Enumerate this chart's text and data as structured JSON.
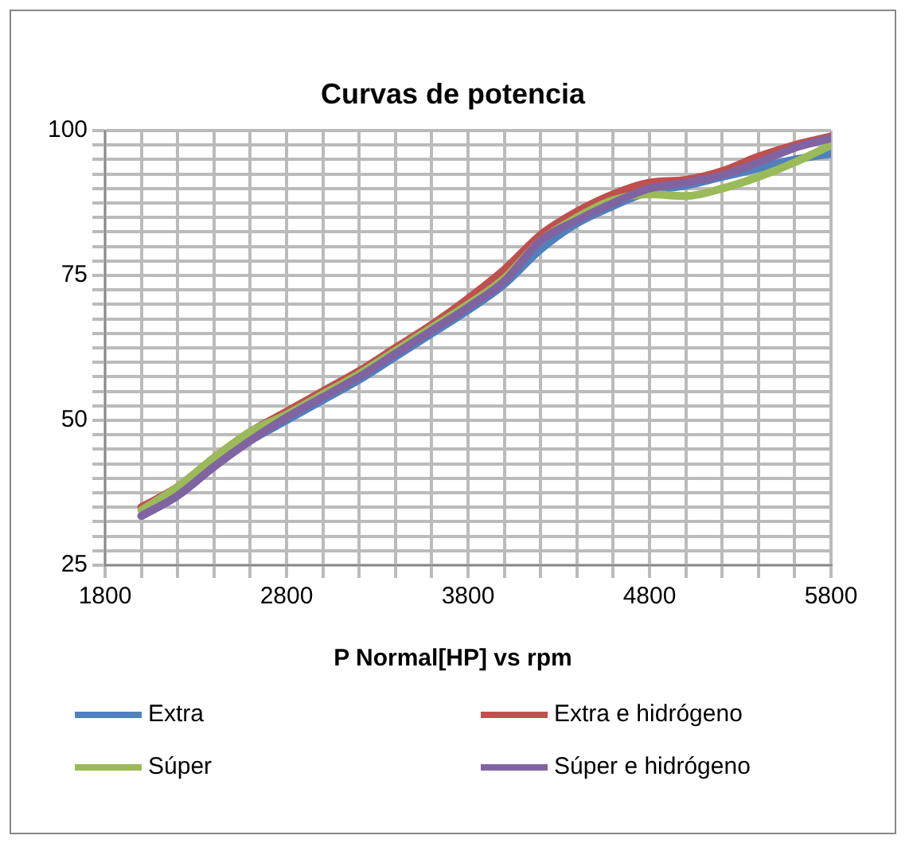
{
  "chart_data": {
    "type": "line",
    "title": "Curvas de potencia",
    "xlabel": "P Normal[HP] vs rpm",
    "x": [
      2000,
      2200,
      2400,
      2600,
      2800,
      3000,
      3200,
      3400,
      3600,
      3800,
      4000,
      4200,
      4400,
      4600,
      4800,
      5000,
      5200,
      5400,
      5600,
      5800
    ],
    "series": [
      {
        "name": "Extra",
        "color": "#4f81bd",
        "values": [
          33.5,
          37,
          42,
          46.5,
          50,
          53.5,
          57,
          61,
          65,
          69,
          73.5,
          79.5,
          84,
          87,
          89.5,
          90.5,
          92,
          93.5,
          95,
          96
        ]
      },
      {
        "name": "Extra e hidrógeno",
        "color": "#c0504d",
        "values": [
          35,
          38.5,
          43.5,
          48,
          51.5,
          55,
          58.5,
          62.5,
          66.5,
          71,
          76,
          82,
          86,
          89,
          91,
          91.5,
          93,
          95.5,
          97.5,
          99
        ]
      },
      {
        "name": "Súper",
        "color": "#9bbb59",
        "values": [
          34.5,
          38.5,
          43.5,
          48,
          51,
          54.5,
          58,
          62,
          66,
          70,
          74.5,
          81,
          85,
          88,
          89,
          88.7,
          90,
          92,
          94.5,
          97.5
        ]
      },
      {
        "name": "Súper e hidrógeno",
        "color": "#8064a2",
        "values": [
          33.5,
          37,
          42,
          46.5,
          50.5,
          54,
          57.5,
          61.5,
          65.5,
          69.5,
          74,
          81,
          84.5,
          87.5,
          90,
          91,
          92.3,
          94.5,
          97,
          98.7
        ]
      }
    ],
    "xlim": [
      1800,
      5800
    ],
    "xticks": [
      1800,
      {
        "value": 2000,
        "label": null
      },
      {
        "value": 2200,
        "label": null
      },
      {
        "value": 2400,
        "label": null
      },
      {
        "value": 2600,
        "label": null
      },
      2800,
      {
        "value": 3000,
        "label": null
      },
      {
        "value": 3200,
        "label": null
      },
      {
        "value": 3400,
        "label": null
      },
      {
        "value": 3600,
        "label": null
      },
      3800,
      {
        "value": 4000,
        "label": null
      },
      {
        "value": 4200,
        "label": null
      },
      {
        "value": 4400,
        "label": null
      },
      {
        "value": 4600,
        "label": null
      },
      4800,
      {
        "value": 5000,
        "label": null
      },
      {
        "value": 5200,
        "label": null
      },
      {
        "value": 5400,
        "label": null
      },
      {
        "value": 5600,
        "label": null
      },
      5800
    ],
    "ylim": [
      25,
      100
    ],
    "yticks": [
      25,
      {
        "value": 27.5,
        "label": null
      },
      {
        "value": 30,
        "label": null
      },
      {
        "value": 32.5,
        "label": null
      },
      {
        "value": 35,
        "label": null
      },
      {
        "value": 37.5,
        "label": null
      },
      {
        "value": 40,
        "label": null
      },
      {
        "value": 42.5,
        "label": null
      },
      {
        "value": 45,
        "label": null
      },
      {
        "value": 47.5,
        "label": null
      },
      50,
      {
        "value": 52.5,
        "label": null
      },
      {
        "value": 55,
        "label": null
      },
      {
        "value": 57.5,
        "label": null
      },
      {
        "value": 60,
        "label": null
      },
      {
        "value": 62.5,
        "label": null
      },
      {
        "value": 65,
        "label": null
      },
      {
        "value": 67.5,
        "label": null
      },
      {
        "value": 70,
        "label": null
      },
      {
        "value": 72.5,
        "label": null
      },
      75,
      {
        "value": 77.5,
        "label": null
      },
      {
        "value": 80,
        "label": null
      },
      {
        "value": 82.5,
        "label": null
      },
      {
        "value": 85,
        "label": null
      },
      {
        "value": 87.5,
        "label": null
      },
      {
        "value": 90,
        "label": null
      },
      {
        "value": 92.5,
        "label": null
      },
      {
        "value": 95,
        "label": null
      },
      {
        "value": 97.5,
        "label": null
      },
      100
    ],
    "grid": true,
    "legend": "bottom",
    "marker": "none",
    "line_style": "solid"
  }
}
